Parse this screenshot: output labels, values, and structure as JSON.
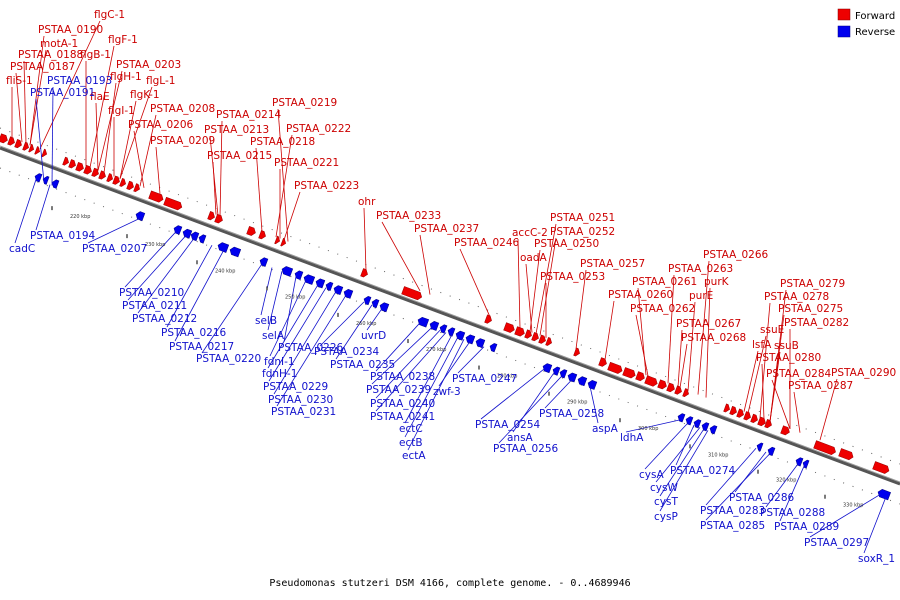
{
  "legend": [
    {
      "label": "Forward",
      "color": "#ee0000"
    },
    {
      "label": "Reverse",
      "color": "#0000ee"
    }
  ],
  "caption": "Pseudomonas stutzeri DSM 4166, complete genome. - 0..4689946",
  "ticks": [
    "220 kbp",
    "230 kbp",
    "240 kbp",
    "250 kbp",
    "260 kbp",
    "270 kbp",
    "280 kbp",
    "290 kbp",
    "300 kbp",
    "310 kbp",
    "320 kbp",
    "330 kbp"
  ],
  "forward_labels": [
    "flgC-1",
    "PSTAA_0190",
    "flgF-1",
    "motA-1",
    "PSTAA_0188",
    "flgB-1",
    "PSTAA_0203",
    "PSTAA_0187",
    "flgH-1",
    "flgL-1",
    "fliS-1",
    "flaE",
    "flgK-1",
    "flgI-1",
    "PSTAA_0208",
    "PSTAA_0206",
    "PSTAA_0209",
    "PSTAA_0214",
    "PSTAA_0219",
    "PSTAA_0213",
    "PSTAA_0222",
    "PSTAA_0218",
    "PSTAA_0215",
    "PSTAA_0221",
    "PSTAA_0223",
    "ohr",
    "PSTAA_0233",
    "PSTAA_0237",
    "PSTAA_0246",
    "PSTAA_0251",
    "PSTAA_0252",
    "accC-2",
    "PSTAA_0250",
    "oadA",
    "PSTAA_0253",
    "PSTAA_0257",
    "PSTAA_0260",
    "PSTAA_0266",
    "PSTAA_0263",
    "PSTAA_0261",
    "purK",
    "purE",
    "PSTAA_0262",
    "PSTAA_0267",
    "PSTAA_0268",
    "PSTAA_0279",
    "PSTAA_0278",
    "PSTAA_0275",
    "ssuE",
    "PSTAA_0282",
    "lsfA",
    "ssuB",
    "PSTAA_0280",
    "PSTAA_0284",
    "PSTAA_0290",
    "PSTAA_0287"
  ],
  "reverse_labels": [
    "PSTAA_0193",
    "PSTAA_0191",
    "cadC",
    "PSTAA_0194",
    "PSTAA_0207",
    "PSTAA_0210",
    "PSTAA_0211",
    "PSTAA_0212",
    "PSTAA_0216",
    "PSTAA_0217",
    "PSTAA_0220",
    "selB",
    "selA",
    "PSTAA_0226",
    "fdnI-1",
    "fdnH-1",
    "PSTAA_0229",
    "PSTAA_0230",
    "PSTAA_0231",
    "PSTAA_0234",
    "PSTAA_0235",
    "uvrD",
    "PSTAA_0238",
    "PSTAA_0239",
    "PSTAA_0240",
    "PSTAA_0241",
    "ectC",
    "ectB",
    "ectA",
    "zwf-3",
    "PSTAA_0247",
    "PSTAA_0254",
    "ansA",
    "PSTAA_0256",
    "PSTAA_0258",
    "aspA",
    "ldhA",
    "cysA",
    "PSTAA_0274",
    "cysW",
    "cysT",
    "cysP",
    "PSTAA_0283",
    "PSTAA_0285",
    "PSTAA_0286",
    "PSTAA_0288",
    "PSTAA_0289",
    "PSTAA_0297",
    "soxR_1"
  ]
}
